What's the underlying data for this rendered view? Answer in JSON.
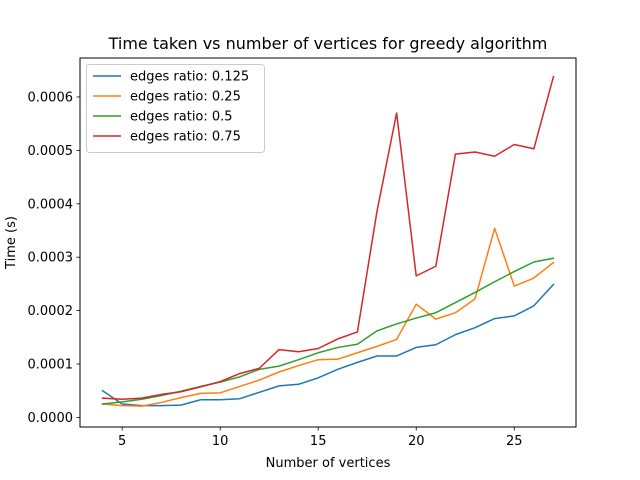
{
  "chart_data": {
    "type": "line",
    "title": "Time taken vs number of vertices for greedy algorithm",
    "xlabel": "Number of vertices",
    "ylabel": "Time (s)",
    "xlim": [
      2.85,
      28.15
    ],
    "ylim": [
      -1.8e-05,
      0.000673
    ],
    "xticks": [
      5,
      10,
      15,
      20,
      25
    ],
    "xtick_labels": [
      "5",
      "10",
      "15",
      "20",
      "25"
    ],
    "yticks": [
      0.0,
      0.0001,
      0.0002,
      0.0003,
      0.0004,
      0.0005,
      0.0006
    ],
    "ytick_labels": [
      "0.0000",
      "0.0001",
      "0.0002",
      "0.0003",
      "0.0004",
      "0.0005",
      "0.0006"
    ],
    "grid": false,
    "legend_position": "top-left",
    "x": [
      4,
      5,
      6,
      7,
      8,
      9,
      10,
      11,
      12,
      13,
      14,
      15,
      16,
      17,
      18,
      19,
      20,
      21,
      22,
      23,
      24,
      25,
      26,
      27
    ],
    "series": [
      {
        "name": "edges ratio: 0.125",
        "color": "#1f77b4",
        "values": [
          5e-05,
          2.5e-05,
          2.2e-05,
          2.2e-05,
          2.3e-05,
          3.3e-05,
          3.3e-05,
          3.5e-05,
          4.7e-05,
          5.9e-05,
          6.2e-05,
          7.4e-05,
          9e-05,
          0.000103,
          0.000115,
          0.000115,
          0.000131,
          0.000136,
          0.000155,
          0.000168,
          0.000185,
          0.00019,
          0.000209,
          0.000249
        ]
      },
      {
        "name": "edges ratio: 0.25",
        "color": "#ff7f0e",
        "values": [
          2.5e-05,
          2.2e-05,
          2.1e-05,
          2.8e-05,
          3.7e-05,
          4.5e-05,
          4.6e-05,
          5.8e-05,
          7e-05,
          8.5e-05,
          9.7e-05,
          0.000108,
          0.000109,
          0.000121,
          0.000133,
          0.000146,
          0.000212,
          0.000184,
          0.000196,
          0.000222,
          0.000354,
          0.000246,
          0.000261,
          0.00029
        ]
      },
      {
        "name": "edges ratio: 0.5",
        "color": "#2ca02c",
        "values": [
          2.5e-05,
          2.9e-05,
          3.4e-05,
          4.1e-05,
          4.9e-05,
          5.8e-05,
          6.6e-05,
          7.6e-05,
          9e-05,
          9.6e-05,
          0.000108,
          0.000121,
          0.000131,
          0.000137,
          0.000162,
          0.000175,
          0.000186,
          0.000196,
          0.000215,
          0.000234,
          0.000254,
          0.000273,
          0.000291,
          0.000298
        ]
      },
      {
        "name": "edges ratio: 0.75",
        "color": "#d62728",
        "values": [
          3.6e-05,
          3.4e-05,
          3.6e-05,
          4.3e-05,
          4.8e-05,
          5.7e-05,
          6.7e-05,
          8.2e-05,
          9.2e-05,
          0.000127,
          0.000123,
          0.000129,
          0.000147,
          0.00016,
          0.000386,
          0.00057,
          0.000265,
          0.000283,
          0.000493,
          0.000497,
          0.000489,
          0.000511,
          0.000503,
          0.000638
        ]
      }
    ]
  }
}
